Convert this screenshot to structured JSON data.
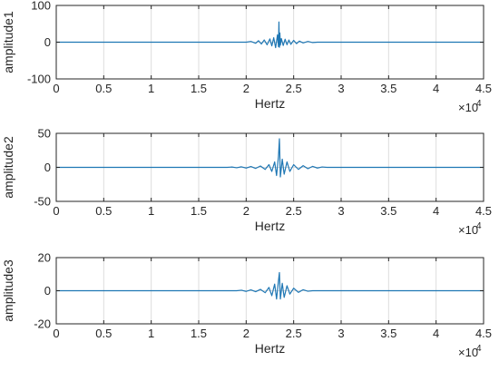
{
  "figure": {
    "background": "#ffffff",
    "axis_color": "#262626",
    "grid_color": "#dcdcdc",
    "line_color": "#1f77b4"
  },
  "chart_data": [
    {
      "type": "line",
      "xlabel": "Hertz",
      "ylabel": "amplitude1",
      "xlim": [
        0,
        45000
      ],
      "ylim": [
        -100,
        100
      ],
      "x_ticks": [
        0,
        5000,
        10000,
        15000,
        20000,
        25000,
        30000,
        35000,
        40000,
        45000
      ],
      "x_tick_labels": [
        "0",
        "0.5",
        "1",
        "1.5",
        "2",
        "2.5",
        "3",
        "3.5",
        "4",
        "4.5"
      ],
      "x_exponent_label": "×10",
      "x_exponent_power": "4",
      "y_ticks": [
        100,
        0,
        -100
      ],
      "y_tick_labels": [
        "100",
        "0",
        "-100"
      ],
      "grid": true,
      "series": [
        {
          "x": [
            0,
            20000,
            20500,
            21000,
            21300,
            21600,
            21900,
            22200,
            22500,
            22700,
            22900,
            23100,
            23300,
            23400,
            23450,
            23500,
            23550,
            23600,
            23700,
            23900,
            24100,
            24300,
            24500,
            24700,
            25000,
            25300,
            25600,
            26000,
            26500,
            27000,
            27500,
            45000
          ],
          "y": [
            0,
            0,
            2,
            -3,
            4,
            -5,
            6,
            -7,
            9,
            -10,
            12,
            -15,
            20,
            -12,
            55,
            -14,
            25,
            -8,
            10,
            -9,
            8,
            -7,
            6,
            -6,
            5,
            -4,
            3,
            -2,
            2,
            -1,
            0,
            0
          ]
        }
      ]
    },
    {
      "type": "line",
      "xlabel": "Hertz",
      "ylabel": "amplitude2",
      "xlim": [
        0,
        45000
      ],
      "ylim": [
        -50,
        50
      ],
      "x_ticks": [
        0,
        5000,
        10000,
        15000,
        20000,
        25000,
        30000,
        35000,
        40000,
        45000
      ],
      "x_tick_labels": [
        "0",
        "0.5",
        "1",
        "1.5",
        "2",
        "2.5",
        "3",
        "3.5",
        "4",
        "4.5"
      ],
      "x_exponent_label": "×10",
      "x_exponent_power": "4",
      "y_ticks": [
        50,
        0,
        -50
      ],
      "y_tick_labels": [
        "50",
        "0",
        "-50"
      ],
      "grid": true,
      "series": [
        {
          "x": [
            0,
            18000,
            18500,
            19000,
            19500,
            20000,
            20500,
            21000,
            21500,
            22000,
            22400,
            22700,
            23000,
            23200,
            23400,
            23500,
            23600,
            23800,
            24000,
            24300,
            24600,
            25000,
            25500,
            26000,
            26500,
            27000,
            27500,
            28000,
            28500,
            45000
          ],
          "y": [
            0,
            0,
            0.5,
            -0.6,
            0.8,
            -1,
            1.2,
            -1.5,
            2,
            -3,
            4,
            -6,
            8,
            -12,
            16,
            42,
            -14,
            12,
            -10,
            8,
            -6,
            4,
            -3,
            2.5,
            -2,
            1.5,
            -1,
            0.6,
            0,
            0
          ]
        }
      ]
    },
    {
      "type": "line",
      "xlabel": "Hertz",
      "ylabel": "amplitude3",
      "xlim": [
        0,
        45000
      ],
      "ylim": [
        -20,
        20
      ],
      "x_ticks": [
        0,
        5000,
        10000,
        15000,
        20000,
        25000,
        30000,
        35000,
        40000,
        45000
      ],
      "x_tick_labels": [
        "0",
        "0.5",
        "1",
        "1.5",
        "2",
        "2.5",
        "3",
        "3.5",
        "4",
        "4.5"
      ],
      "x_exponent_label": "×10",
      "x_exponent_power": "4",
      "y_ticks": [
        20,
        0,
        -20
      ],
      "y_tick_labels": [
        "20",
        "0",
        "-20"
      ],
      "grid": true,
      "series": [
        {
          "x": [
            0,
            19000,
            19500,
            20000,
            20500,
            21000,
            21500,
            22000,
            22400,
            22700,
            23000,
            23200,
            23400,
            23500,
            23600,
            23800,
            24000,
            24300,
            24600,
            25000,
            25500,
            26000,
            26500,
            27000,
            45000
          ],
          "y": [
            0,
            0,
            0.3,
            -0.4,
            0.5,
            -0.6,
            0.8,
            -1.2,
            2,
            -3,
            4,
            -5,
            6,
            11,
            -5,
            4.5,
            -4,
            3,
            -2,
            1.5,
            -1,
            0.6,
            -0.3,
            0,
            0
          ]
        }
      ]
    }
  ]
}
